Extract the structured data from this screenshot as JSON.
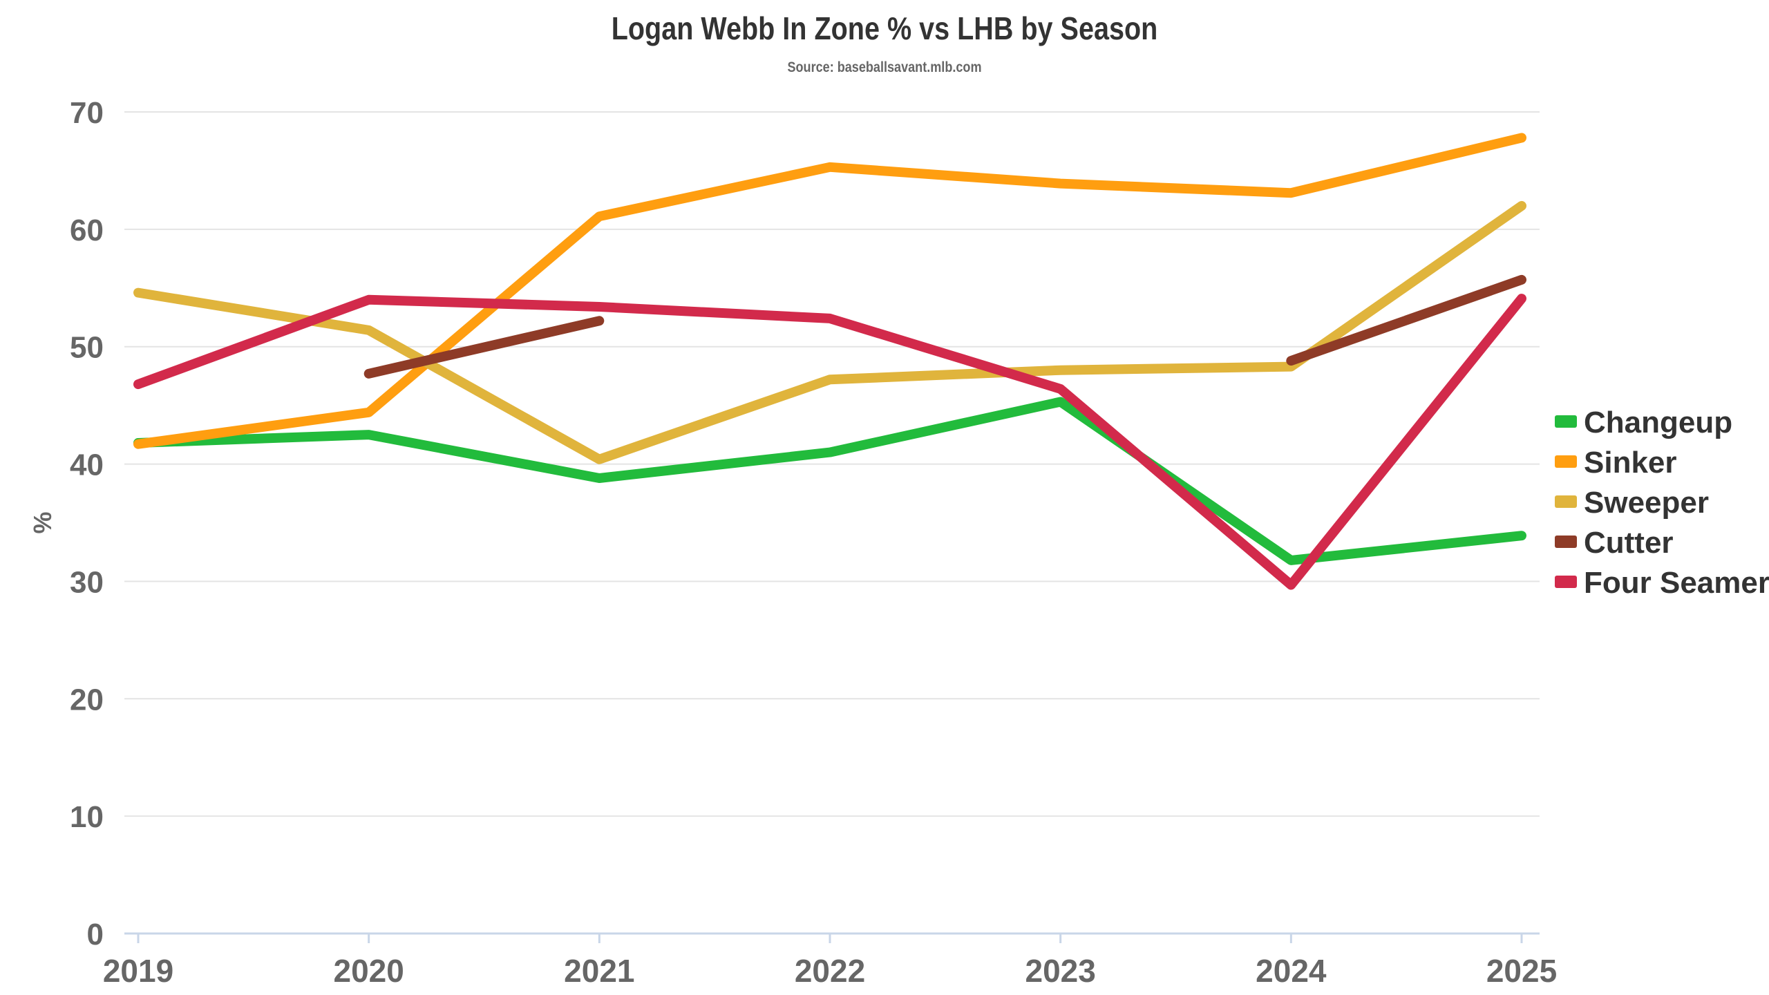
{
  "chart_data": {
    "type": "line",
    "title": "Logan Webb In Zone % vs LHB by Season",
    "subtitle": "Source: baseballsavant.mlb.com",
    "xlabel": "",
    "ylabel": "%",
    "categories": [
      "2019",
      "2020",
      "2021",
      "2022",
      "2023",
      "2024",
      "2025"
    ],
    "ylim": [
      0,
      70
    ],
    "yticks": [
      0,
      10,
      20,
      30,
      40,
      50,
      60,
      70
    ],
    "grid": true,
    "legend_position": "right",
    "series": [
      {
        "name": "Changeup",
        "color": "#22bb3c",
        "values": [
          41.8,
          42.5,
          38.8,
          41.0,
          45.3,
          31.8,
          33.9
        ]
      },
      {
        "name": "Sinker",
        "color": "#ff9e10",
        "values": [
          41.7,
          44.4,
          61.1,
          65.3,
          63.9,
          63.1,
          67.8
        ]
      },
      {
        "name": "Sweeper",
        "color": "#e0b43c",
        "values": [
          54.6,
          51.4,
          40.4,
          47.2,
          48.0,
          48.3,
          62.0
        ]
      },
      {
        "name": "Cutter",
        "color": "#8e3b27",
        "values": [
          null,
          47.7,
          52.2,
          null,
          null,
          48.8,
          55.7
        ]
      },
      {
        "name": "Four Seamer",
        "color": "#d22a4b",
        "values": [
          46.8,
          54.0,
          53.4,
          52.4,
          46.4,
          29.7,
          54.1
        ]
      }
    ]
  }
}
